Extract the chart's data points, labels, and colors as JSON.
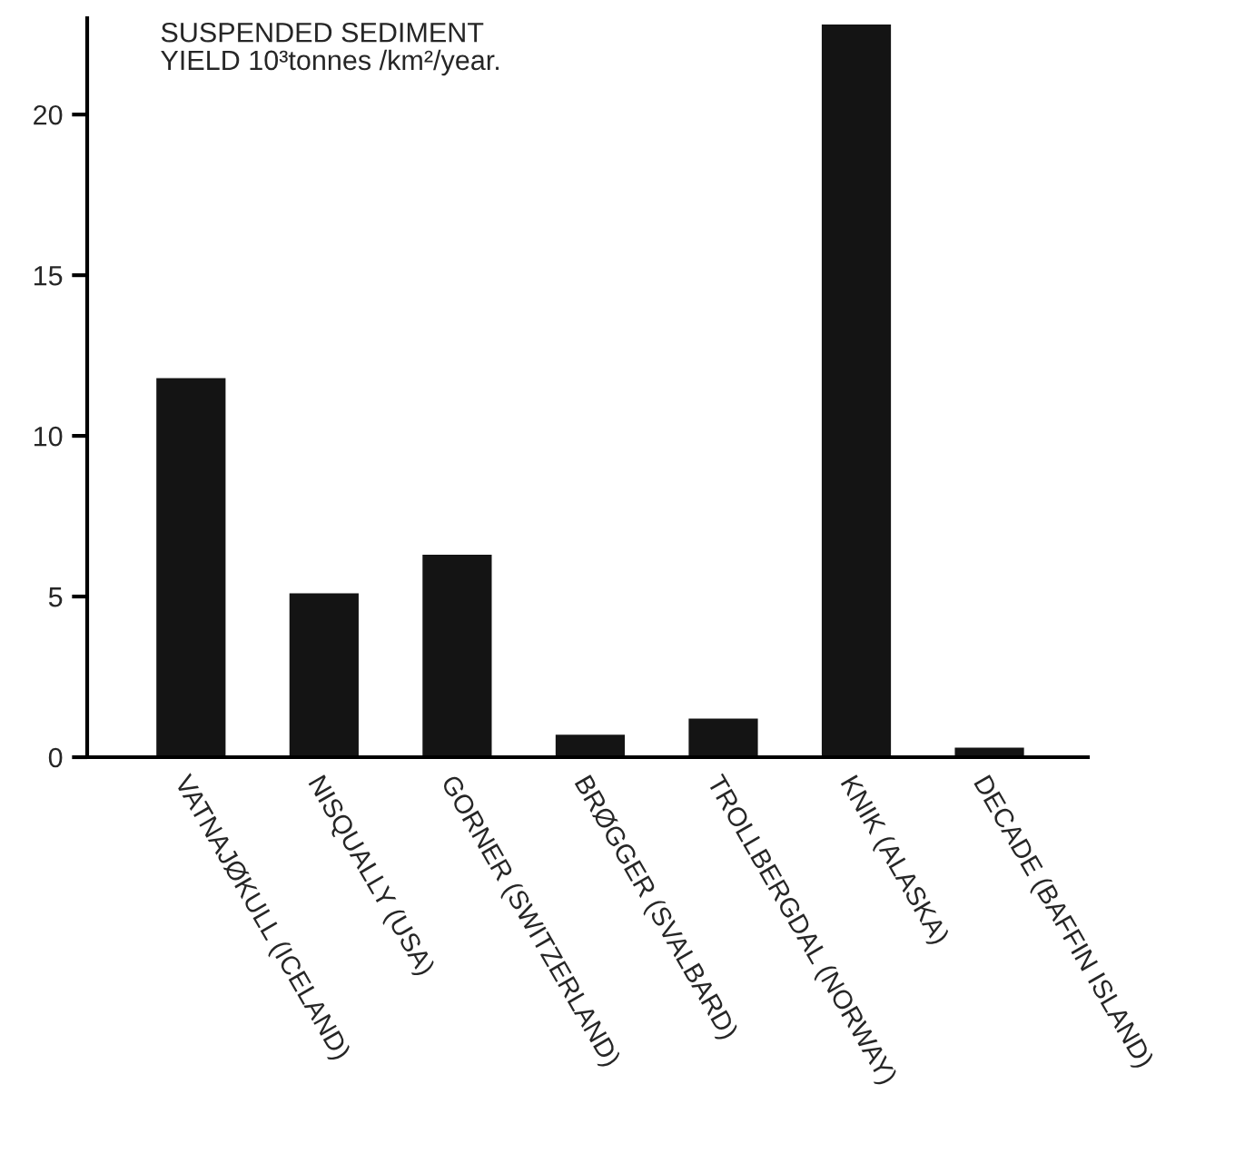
{
  "chart_data": {
    "type": "bar",
    "ylabel": "SUSPENDED SEDIMENT\nYIELD 10³tonnes /km²/year.",
    "categories": [
      "VATNAJØKULL (ICELAND)",
      "NISQUALLY (USA)",
      "GORNER (SWITZERLAND)",
      "BRØGGER (SVALBARD)",
      "TROLLBERGDAL (NORWAY)",
      "KNIK (ALASKA)",
      "DECADE (BAFFIN ISLAND)"
    ],
    "values": [
      11.8,
      5.1,
      6.3,
      0.7,
      1.2,
      22.8,
      0.3
    ],
    "color": "#141414",
    "ylim": [
      0,
      23
    ],
    "yticks": [
      0,
      5,
      10,
      15,
      20
    ]
  }
}
